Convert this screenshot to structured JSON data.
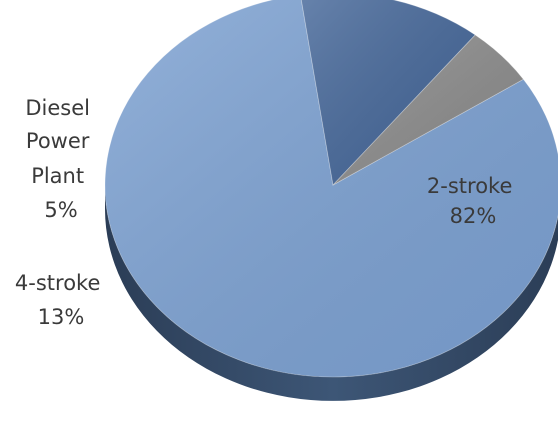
{
  "chart_data": {
    "type": "pie",
    "style": "3d",
    "title": "",
    "slices": [
      {
        "label": "2-stroke",
        "value": 82,
        "pct_label": "82%",
        "color": "#7da2d3"
      },
      {
        "label": "4-stroke",
        "value": 13,
        "pct_label": "13%",
        "color": "#46689a"
      },
      {
        "label": "Diesel Power Plant",
        "value": 5,
        "pct_label": "5%",
        "color": "#8c8c8c"
      }
    ],
    "labels": {
      "two_stroke": [
        "2-stroke",
        "82%"
      ],
      "four_stroke": [
        "4-stroke",
        "13%"
      ],
      "diesel": [
        "Diesel",
        "Power",
        "Plant",
        "5%"
      ]
    },
    "legend": "none"
  }
}
